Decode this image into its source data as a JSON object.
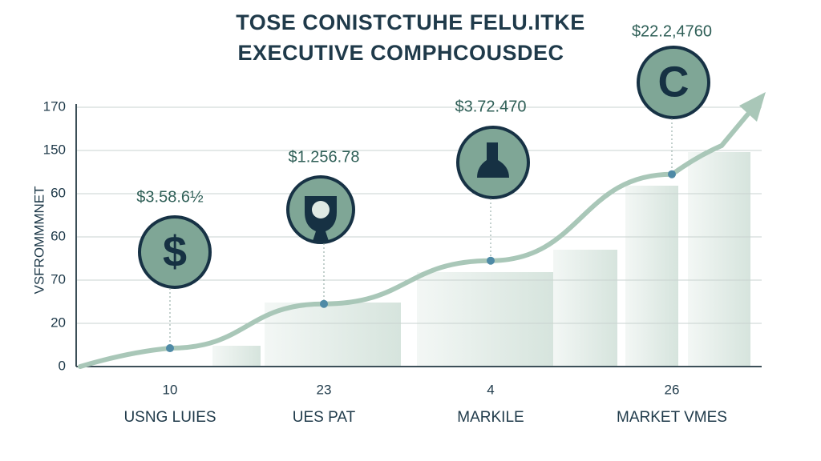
{
  "chart_data": {
    "type": "line",
    "title": [
      "TOSE CONISTCTUHE FELU.ITKE",
      "EXECUTIVE COMPHCOUSDEC"
    ],
    "y_label": "VSFROMMMNET",
    "categories": [
      "USNG LUIES",
      "UES PAT",
      "MARKILE",
      "MARKET VMES"
    ],
    "category_numbers": [
      10,
      23,
      4,
      26
    ],
    "series": [
      {
        "name": "",
        "color": "#a9c7b8",
        "values": [
          8.5,
          29,
          49,
          89
        ]
      }
    ],
    "annotations": [
      "$3.58.6½",
      "$1.256.78",
      "$3.72.470",
      "$22.2,4760"
    ],
    "icon_labels": [
      "$",
      "C"
    ],
    "ylim": [
      0,
      120
    ],
    "yticks": [
      0,
      20,
      {
        "value": 40,
        "label": "70"
      },
      60,
      {
        "value": 80,
        "label": "60"
      },
      {
        "value": 100,
        "label": "150"
      },
      {
        "value": 120,
        "label": "170"
      }
    ],
    "grid": true
  }
}
